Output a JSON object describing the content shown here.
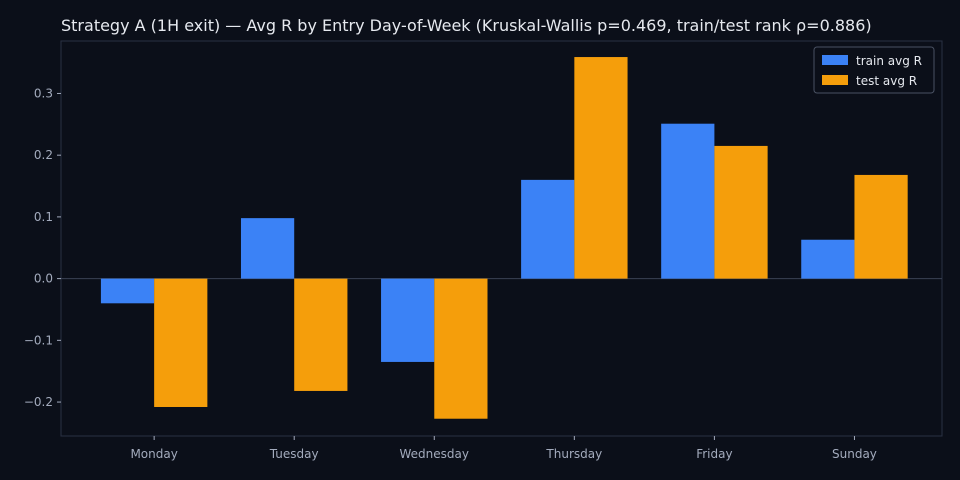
{
  "chart_data": {
    "type": "bar",
    "title": "Strategy A (1H exit) — Avg R by Entry Day-of-Week (Kruskal-Wallis p=0.469, train/test rank ρ=0.886)",
    "xlabel": "",
    "ylabel": "",
    "categories": [
      "Monday",
      "Tuesday",
      "Wednesday",
      "Thursday",
      "Friday",
      "Sunday"
    ],
    "series": [
      {
        "name": "train avg R",
        "color": "#3b82f6",
        "values": [
          -0.04,
          0.098,
          -0.135,
          0.16,
          0.251,
          0.063
        ]
      },
      {
        "name": "test avg R",
        "color": "#f59e0b",
        "values": [
          -0.208,
          -0.182,
          -0.227,
          0.359,
          0.215,
          0.168
        ]
      }
    ],
    "ylim": [
      -0.255,
      0.385
    ],
    "yticks": [
      -0.2,
      -0.1,
      0.0,
      0.1,
      0.2,
      0.3
    ],
    "ytick_labels": [
      "−0.2",
      "−0.1",
      "0.0",
      "0.1",
      "0.2",
      "0.3"
    ],
    "grid": false,
    "legend_position": "top-right",
    "colors": {
      "background": "#0b0f19",
      "axes": "#2a3142",
      "text": "#e6e9ef",
      "tick_text": "#a3abbd"
    }
  }
}
